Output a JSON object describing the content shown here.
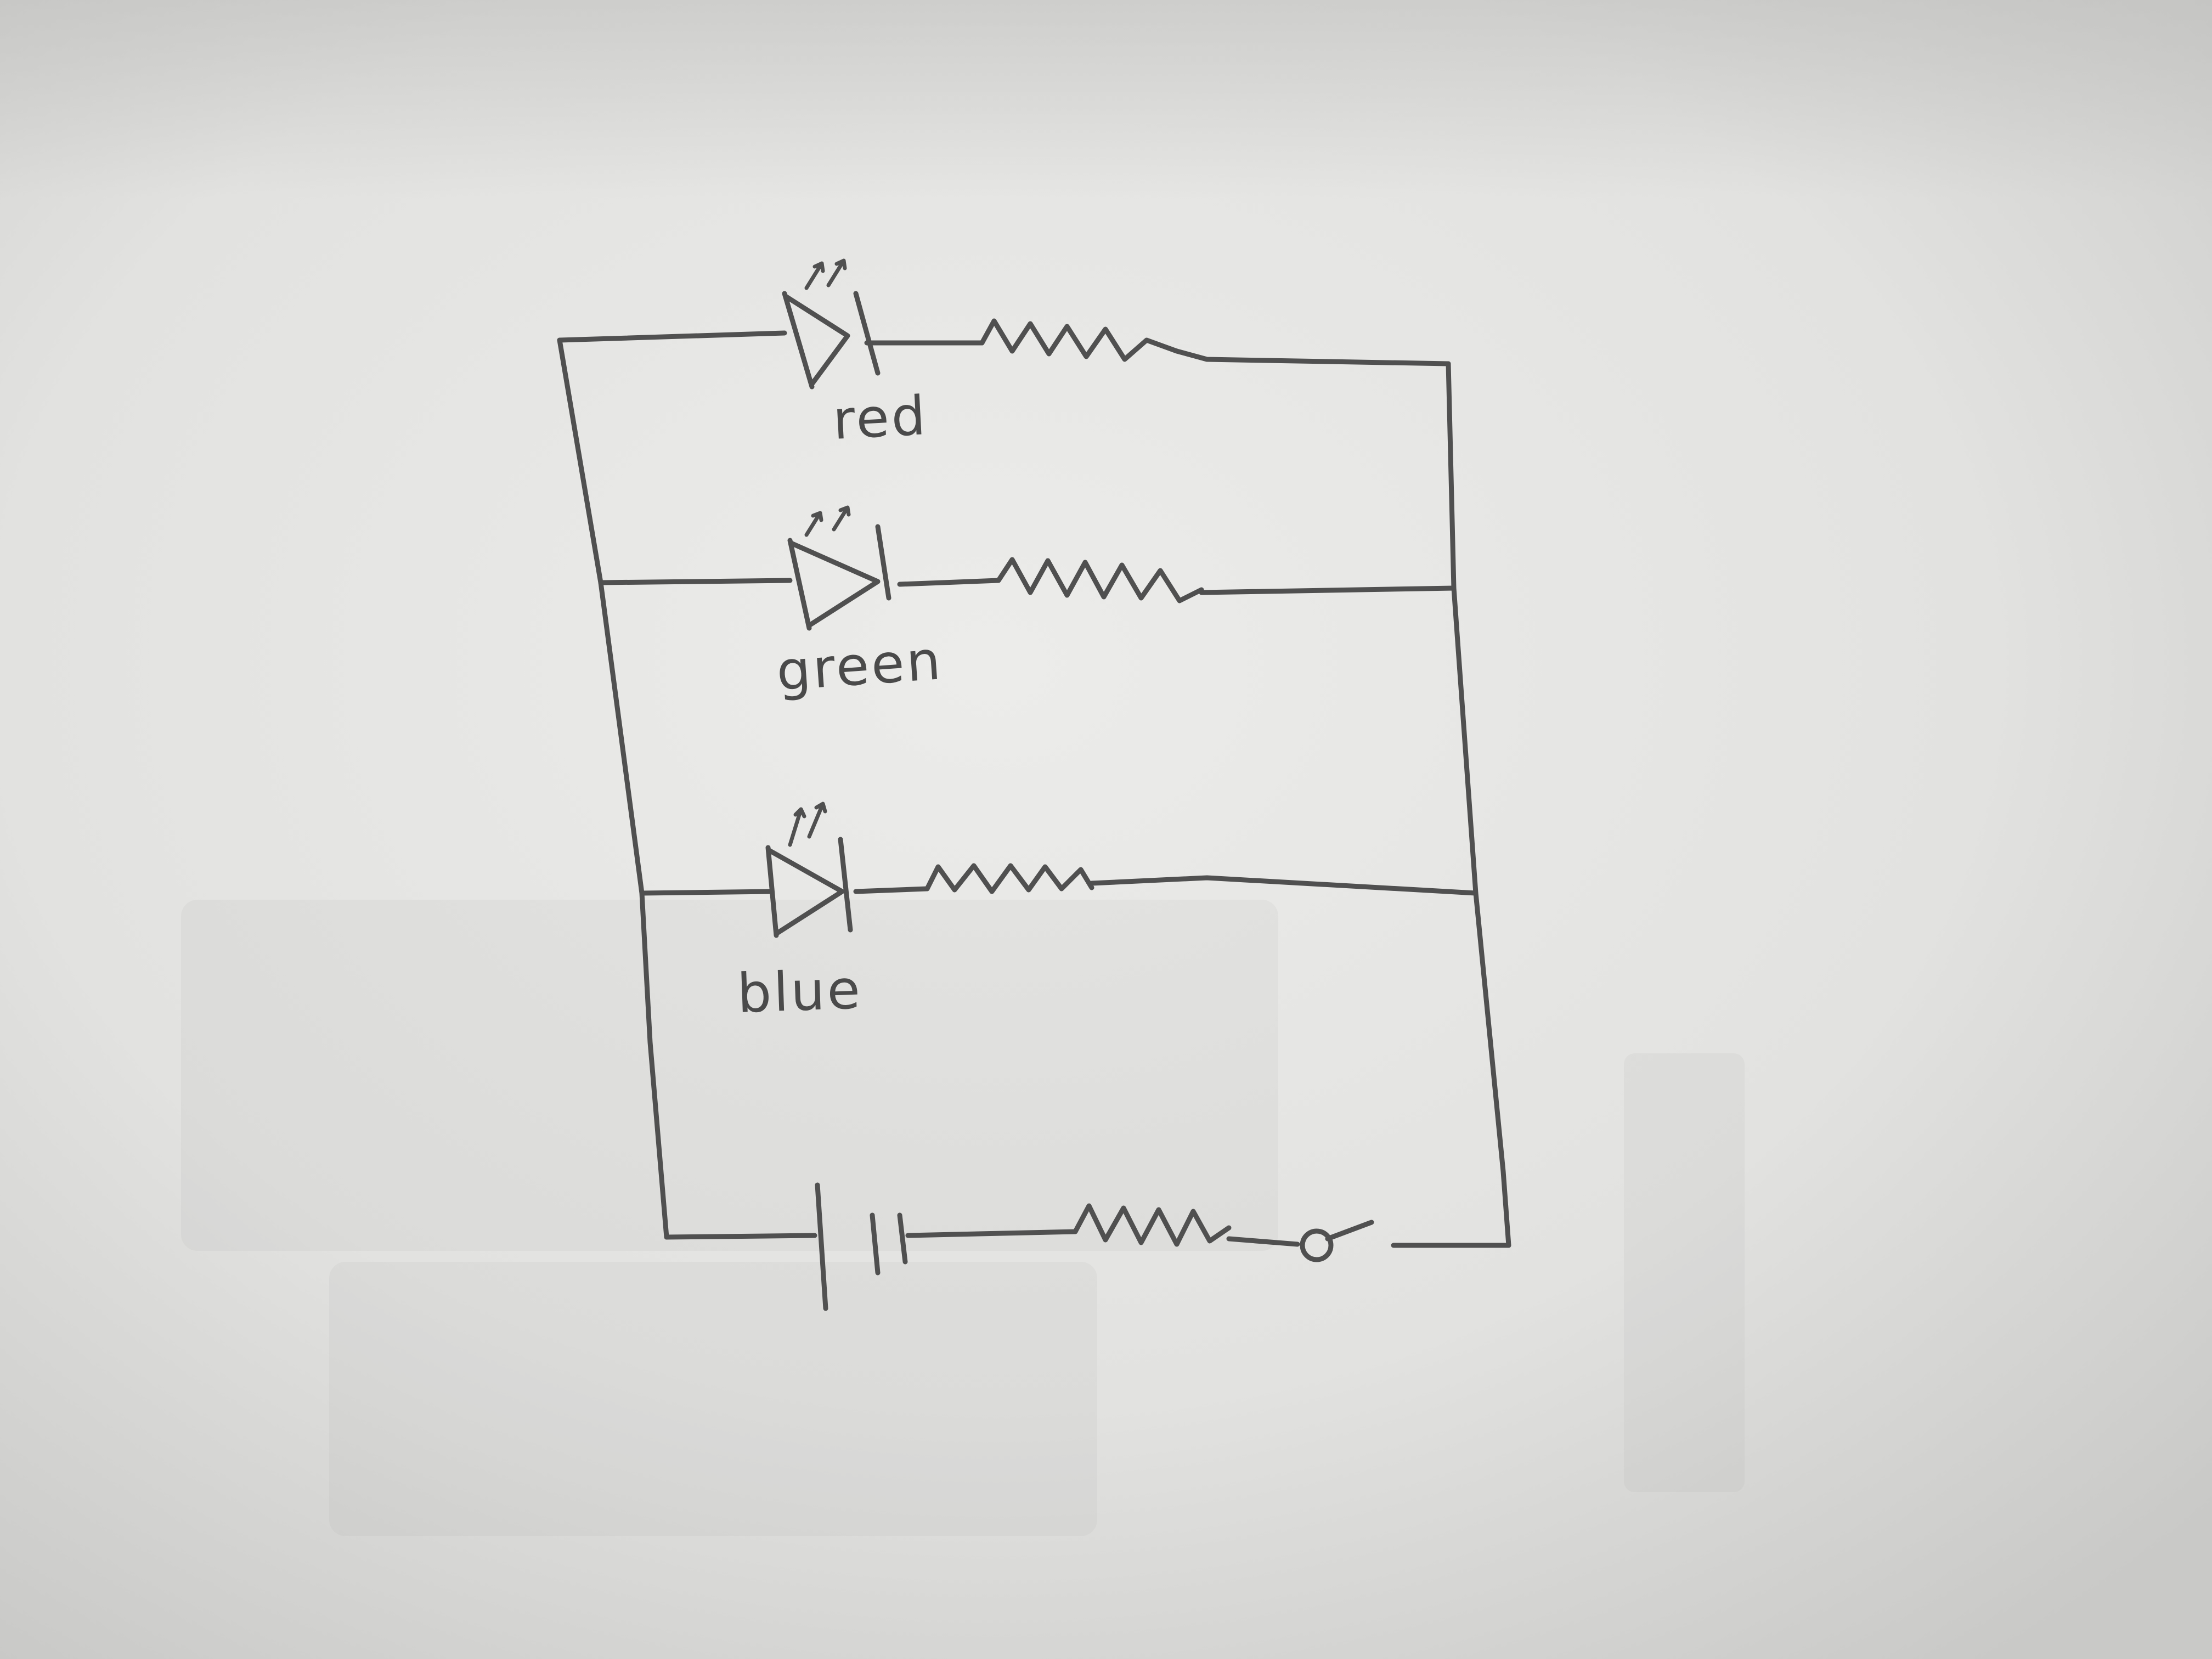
{
  "diagram": {
    "type": "hand-drawn circuit schematic on paper",
    "colors": {
      "ink": "#505050",
      "paper_light": "#ebebe9",
      "paper_shadow": "#cfcfcd"
    },
    "branches": [
      {
        "component": "led",
        "label": "red"
      },
      {
        "component": "led",
        "label": "green"
      },
      {
        "component": "led",
        "label": "blue"
      }
    ],
    "source_branch": [
      "battery",
      "resistor",
      "switch-open"
    ]
  }
}
